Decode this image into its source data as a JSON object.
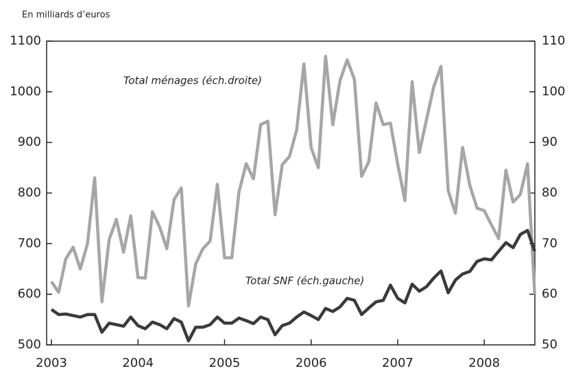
{
  "chart_data": {
    "type": "line",
    "subtitle": "En milliards d’euros",
    "categories": [
      "2003",
      null,
      null,
      null,
      null,
      null,
      null,
      null,
      null,
      null,
      null,
      null,
      "2004",
      null,
      null,
      null,
      null,
      null,
      null,
      null,
      null,
      null,
      null,
      null,
      "2005",
      null,
      null,
      null,
      null,
      null,
      null,
      null,
      null,
      null,
      null,
      null,
      "2006",
      null,
      null,
      null,
      null,
      null,
      null,
      null,
      null,
      null,
      null,
      null,
      "2007",
      null,
      null,
      null,
      null,
      null,
      null,
      null,
      null,
      null,
      null,
      null,
      "2008",
      null,
      null,
      null,
      null,
      null,
      null,
      null
    ],
    "series": [
      {
        "name": "Total ménages (éch.droite)",
        "color": "#a6a6a6",
        "axis": "y2",
        "values": [
          62.5,
          60.4,
          67,
          69.3,
          65,
          70,
          83,
          58.5,
          70.8,
          74.8,
          68.3,
          75.5,
          63.3,
          63.2,
          76.3,
          73.3,
          69,
          78.7,
          81,
          57.7,
          66,
          69,
          70.5,
          81.7,
          67.2,
          67.2,
          80.2,
          85.8,
          82.8,
          93.5,
          94.2,
          75.7,
          85.6,
          87.2,
          92.5,
          105.5,
          89,
          85,
          107,
          93.5,
          102.2,
          106.3,
          102.5,
          83.3,
          86.2,
          97.8,
          93.5,
          93.8,
          85.7,
          78.5,
          102,
          88,
          94.5,
          101,
          105,
          80.5,
          76,
          89,
          81.5,
          77,
          76.5,
          73.7,
          71,
          84.5,
          78.2,
          79.7,
          85.8,
          60
        ]
      },
      {
        "name": "Total SNF (éch.gauche)",
        "color": "#3a3a3a",
        "values": [
          570,
          560,
          561,
          558,
          555,
          560,
          560,
          525,
          543,
          540,
          537,
          555,
          538,
          532,
          545,
          540,
          532,
          552,
          545,
          508,
          535,
          535,
          540,
          555,
          543,
          543,
          553,
          548,
          542,
          555,
          550,
          520,
          538,
          543,
          555,
          565,
          558,
          550,
          572,
          566,
          575,
          592,
          588,
          560,
          573,
          585,
          588,
          618,
          592,
          583,
          620,
          606,
          615,
          632,
          646,
          603,
          628,
          640,
          645,
          665,
          670,
          668,
          685,
          702,
          692,
          718,
          726,
          685
        ]
      }
    ],
    "ylim": [
      500,
      1100
    ],
    "yticks": [
      500,
      600,
      700,
      800,
      900,
      1000,
      1100
    ],
    "y2lim": [
      50,
      110
    ],
    "y2ticks": [
      50,
      60,
      70,
      80,
      90,
      100,
      110
    ],
    "grid": false
  }
}
